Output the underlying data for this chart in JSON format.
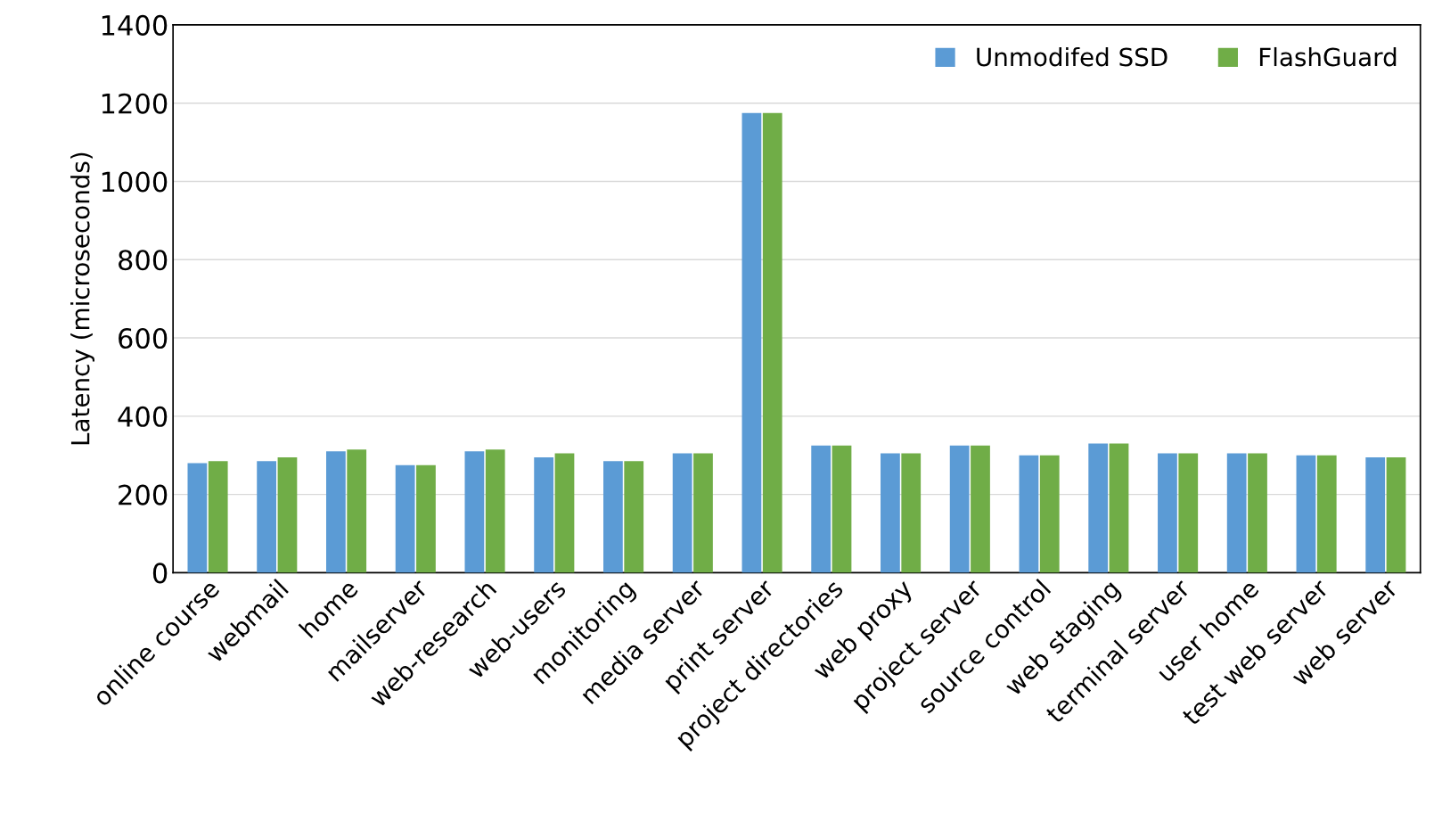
{
  "chart_data": {
    "type": "bar",
    "ylabel": "Latency (microseconds)",
    "categories": [
      "online course",
      "webmail",
      "home",
      "mailserver",
      "web-research",
      "web-users",
      "monitoring",
      "media server",
      "print server",
      "project directories",
      "web proxy",
      "project server",
      "source control",
      "web staging",
      "terminal server",
      "user home",
      "test web server",
      "web server"
    ],
    "series": [
      {
        "name": "Unmodifed SSD",
        "color": "#5b9bd5",
        "values": [
          280,
          285,
          310,
          275,
          310,
          295,
          285,
          305,
          1175,
          325,
          305,
          325,
          300,
          330,
          305,
          305,
          300,
          295
        ]
      },
      {
        "name": "FlashGuard",
        "color": "#70ad47",
        "values": [
          285,
          295,
          315,
          275,
          315,
          305,
          285,
          305,
          1175,
          325,
          305,
          325,
          300,
          330,
          305,
          305,
          300,
          295
        ]
      }
    ],
    "ylim": [
      0,
      1400
    ],
    "yticks": [
      0,
      200,
      400,
      600,
      800,
      1000,
      1200,
      1400
    ],
    "grid": "y",
    "legend": "top right"
  }
}
